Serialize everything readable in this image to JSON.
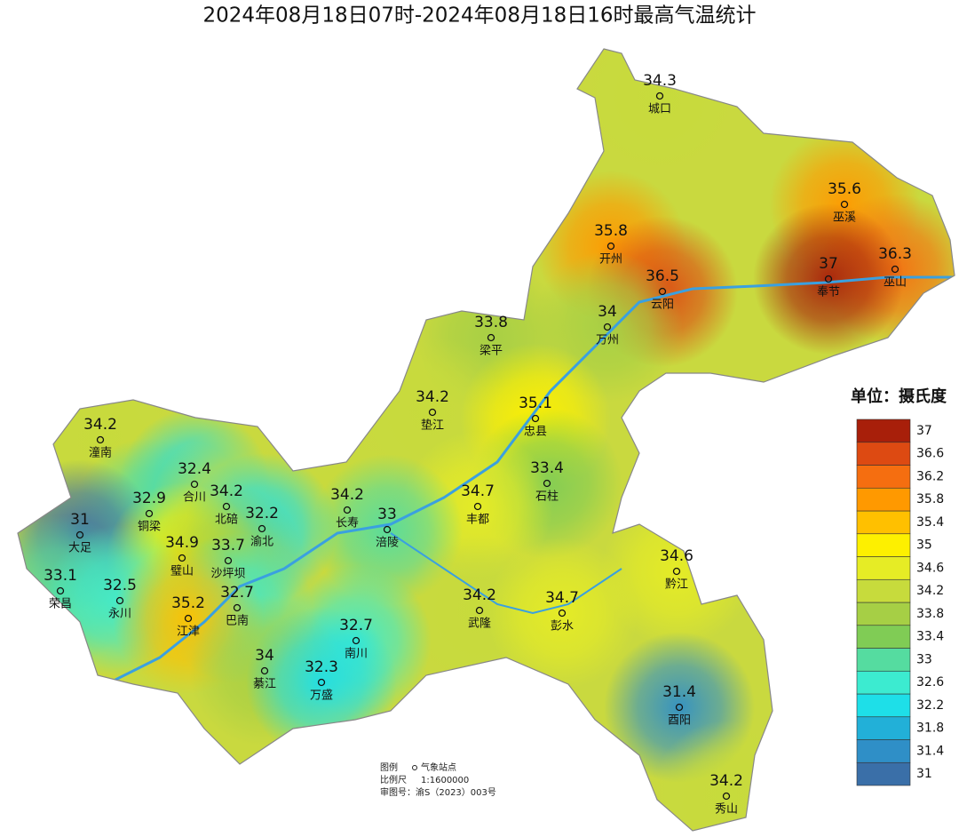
{
  "title": "2024年08月18日07时-2024年08月18日16时最高气温统计",
  "stations": [
    {
      "name": "城口",
      "value": 34.3
    },
    {
      "name": "巫溪",
      "value": 35.6
    },
    {
      "name": "开州",
      "value": 35.8
    },
    {
      "name": "巫山",
      "value": 36.3
    },
    {
      "name": "奉节",
      "value": 37
    },
    {
      "name": "云阳",
      "value": 36.5
    },
    {
      "name": "万州",
      "value": 34
    },
    {
      "name": "梁平",
      "value": 33.8
    },
    {
      "name": "垫江",
      "value": 34.2
    },
    {
      "name": "忠县",
      "value": 35.1
    },
    {
      "name": "潼南",
      "value": 34.2
    },
    {
      "name": "石柱",
      "value": 33.4
    },
    {
      "name": "合川",
      "value": 32.4
    },
    {
      "name": "铜梁",
      "value": 32.9
    },
    {
      "name": "北碚",
      "value": 34.2
    },
    {
      "name": "长寿",
      "value": 34.2
    },
    {
      "name": "丰都",
      "value": 34.7
    },
    {
      "name": "涪陵",
      "value": 33
    },
    {
      "name": "大足",
      "value": 31
    },
    {
      "name": "渝北",
      "value": 32.2
    },
    {
      "name": "璧山",
      "value": 34.9
    },
    {
      "name": "沙坪坝",
      "value": 33.7
    },
    {
      "name": "黔江",
      "value": 34.6
    },
    {
      "name": "荣昌",
      "value": 33.1
    },
    {
      "name": "永川",
      "value": 32.5
    },
    {
      "name": "巴南",
      "value": 32.7
    },
    {
      "name": "武隆",
      "value": 34.2
    },
    {
      "name": "彭水",
      "value": 34.7
    },
    {
      "name": "江津",
      "value": 35.2
    },
    {
      "name": "南川",
      "value": 32.7
    },
    {
      "name": "綦江",
      "value": 34
    },
    {
      "name": "万盛",
      "value": 32.3
    },
    {
      "name": "酉阳",
      "value": 31.4
    },
    {
      "name": "秀山",
      "value": 34.2
    }
  ],
  "legend": {
    "title": "单位：摄氏度",
    "ticks": [
      31,
      31.4,
      31.8,
      32.2,
      32.6,
      33,
      33.4,
      33.8,
      34.2,
      34.6,
      35,
      35.4,
      35.8,
      36.2,
      36.6,
      37
    ],
    "colors": [
      "#3a6fa8",
      "#2f8fc7",
      "#22b0d8",
      "#1edfe8",
      "#3cebd0",
      "#55dca0",
      "#80cc55",
      "#a6cf45",
      "#c7db3c",
      "#e6ec25",
      "#fdf000",
      "#ffc000",
      "#ff9900",
      "#f56e10",
      "#dd4a12",
      "#a81f0a"
    ]
  },
  "notes": {
    "legend_label": "图例",
    "station_label": "气象站点",
    "scale_label": "比例尺",
    "scale": "1:1600000",
    "approval": "审图号：渝S（2023）003号"
  }
}
